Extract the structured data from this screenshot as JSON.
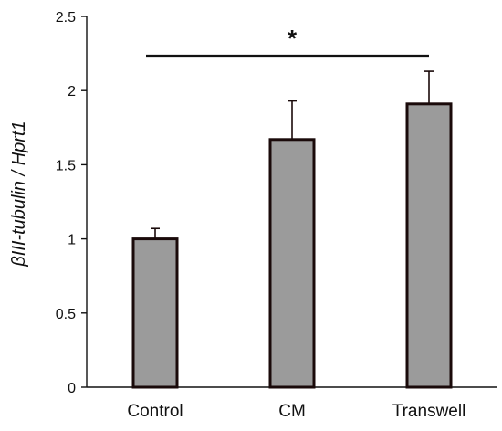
{
  "chart_data": {
    "type": "bar",
    "categories": [
      "Control",
      "CM",
      "Transwell"
    ],
    "values": [
      1.0,
      1.67,
      1.91
    ],
    "error_upper": [
      0.07,
      0.26,
      0.22
    ],
    "ylabel": "βIII-tubulin / Hprt1",
    "xlabel": "",
    "ylim": [
      0,
      2.5
    ],
    "yticks": [
      0,
      0.5,
      1,
      1.5,
      2,
      2.5
    ],
    "ytick_labels": [
      "0",
      "0.5",
      "1",
      "1.5",
      "2",
      "2.5"
    ],
    "grid": false,
    "legend": "none",
    "significance": {
      "from": "Control",
      "to": "Transwell",
      "label": "*"
    },
    "colors": {
      "bar_fill": "#9b9b9b",
      "bar_stroke": "#1a0a0a",
      "axis": "#111111"
    }
  }
}
